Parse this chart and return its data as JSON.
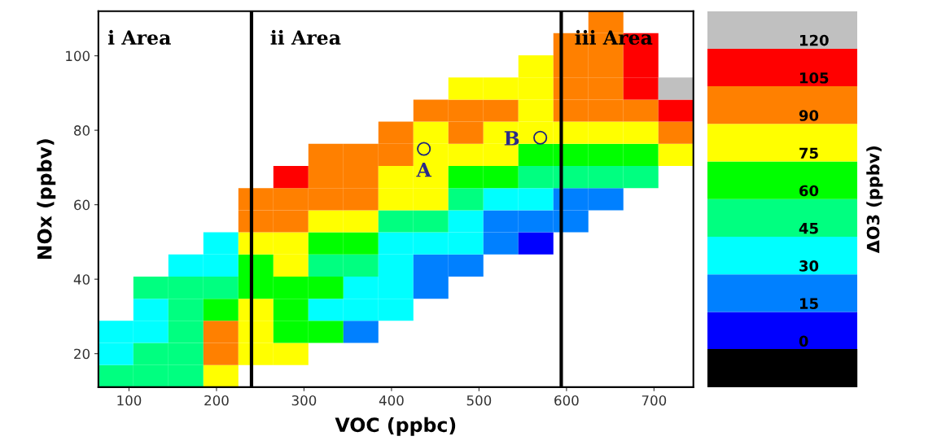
{
  "chart_data": {
    "type": "heatmap",
    "xlabel": "VOC (ppbc)",
    "ylabel": "NOx (ppbv)",
    "clabel": "ΔO3 (ppbv)",
    "xlim": [
      65,
      745
    ],
    "xticks": [
      100,
      200,
      300,
      400,
      500,
      600,
      700
    ],
    "ylim": [
      11,
      112
    ],
    "yticks": [
      20,
      40,
      60,
      80,
      100
    ],
    "clim": [
      -15,
      135
    ],
    "cticks": [
      0,
      15,
      30,
      45,
      60,
      75,
      90,
      105,
      120
    ],
    "colors": [
      "#000000",
      "#0000ff",
      "#0080ff",
      "#00ffff",
      "#00ff80",
      "#00ff00",
      "#ffff00",
      "#ff8000",
      "#ff0000",
      "#c0c0c0"
    ],
    "cells": [
      [
        null,
        null,
        null,
        null,
        null,
        null,
        null,
        null,
        null,
        null,
        null,
        null,
        null,
        null,
        98,
        null,
        null
      ],
      [
        null,
        null,
        null,
        null,
        null,
        null,
        null,
        null,
        null,
        null,
        null,
        null,
        null,
        98,
        98,
        113,
        null
      ],
      [
        null,
        null,
        null,
        null,
        null,
        null,
        null,
        null,
        null,
        null,
        null,
        null,
        83,
        98,
        98,
        113,
        null
      ],
      [
        null,
        null,
        null,
        null,
        null,
        null,
        null,
        null,
        null,
        null,
        83,
        83,
        83,
        98,
        98,
        113,
        128
      ],
      [
        null,
        null,
        null,
        null,
        null,
        null,
        null,
        null,
        null,
        98,
        98,
        98,
        83,
        98,
        98,
        98,
        113
      ],
      [
        null,
        null,
        null,
        null,
        null,
        null,
        null,
        null,
        98,
        83,
        98,
        83,
        83,
        83,
        83,
        83,
        98
      ],
      [
        null,
        null,
        null,
        null,
        null,
        null,
        98,
        98,
        98,
        83,
        83,
        83,
        68,
        68,
        68,
        68,
        83
      ],
      [
        null,
        null,
        null,
        null,
        null,
        113,
        98,
        98,
        83,
        83,
        68,
        68,
        53,
        53,
        53,
        53,
        null
      ],
      [
        null,
        null,
        null,
        null,
        98,
        98,
        98,
        98,
        83,
        83,
        53,
        38,
        38,
        23,
        23,
        null,
        null
      ],
      [
        null,
        null,
        null,
        null,
        98,
        98,
        83,
        83,
        53,
        53,
        38,
        23,
        23,
        23,
        null,
        null,
        null
      ],
      [
        null,
        null,
        null,
        38,
        83,
        83,
        68,
        68,
        38,
        38,
        38,
        23,
        8,
        null,
        null,
        null,
        null
      ],
      [
        null,
        null,
        38,
        38,
        68,
        83,
        53,
        53,
        38,
        23,
        23,
        null,
        null,
        null,
        null,
        null,
        null
      ],
      [
        null,
        53,
        53,
        53,
        68,
        68,
        68,
        38,
        38,
        23,
        null,
        null,
        null,
        null,
        null,
        null,
        null
      ],
      [
        null,
        38,
        53,
        68,
        83,
        68,
        38,
        38,
        38,
        null,
        null,
        null,
        null,
        null,
        null,
        null,
        null
      ],
      [
        38,
        38,
        53,
        98,
        83,
        68,
        68,
        23,
        null,
        null,
        null,
        null,
        null,
        null,
        null,
        null,
        null
      ],
      [
        38,
        53,
        53,
        98,
        83,
        83,
        null,
        null,
        null,
        null,
        null,
        null,
        null,
        null,
        null,
        null,
        null
      ],
      [
        53,
        53,
        53,
        83,
        null,
        null,
        null,
        null,
        null,
        null,
        null,
        null,
        null,
        null,
        null,
        null,
        null
      ]
    ],
    "ref_lines": [
      {
        "axis": "x",
        "value": 240,
        "color": "#000000"
      },
      {
        "axis": "x",
        "value": 594,
        "color": "#000000"
      }
    ],
    "annotations": [
      "ⅰ Area",
      "ⅱ Area",
      "ⅲ Area",
      {
        "text": "A",
        "x": 437,
        "y": 75
      },
      {
        "text": "B",
        "x": 570,
        "y": 78
      }
    ]
  }
}
